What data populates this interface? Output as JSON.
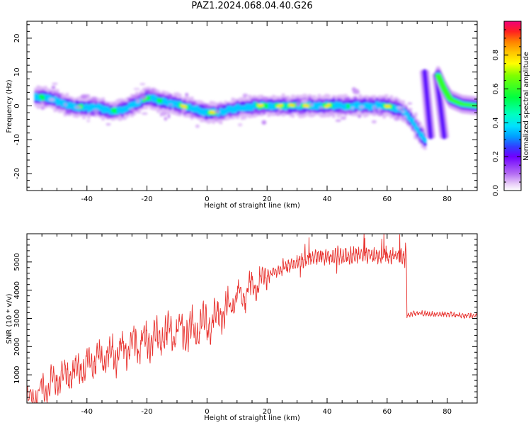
{
  "title": "PAZ1.2024.068.04.40.G26",
  "chart_data": [
    {
      "type": "heatmap",
      "xlabel": "Height of straight line (km)",
      "ylabel": "Frequency (Hz)",
      "xlim": [
        -60,
        90
      ],
      "ylim": [
        -25,
        25
      ],
      "xticks": [
        "-40",
        "-20",
        "0",
        "20",
        "40",
        "60",
        "80"
      ],
      "yticks": [
        "-20",
        "-10",
        "0",
        "10",
        "20"
      ],
      "colorbar": {
        "label": "Normalized spectral amplitude",
        "range": [
          0.0,
          1.0
        ],
        "ticks": [
          "0.0",
          "0.2",
          "0.4",
          "0.6",
          "0.8"
        ]
      },
      "ridge": {
        "x": [
          -57,
          -54,
          -50,
          -46,
          -43,
          -40,
          -36,
          -32,
          -28,
          -24,
          -20,
          -16,
          -12,
          -8,
          -4,
          0,
          4,
          8,
          12,
          16,
          20,
          30,
          40,
          50,
          60,
          64,
          66,
          68,
          70,
          72,
          73
        ],
        "y": [
          2.5,
          2.5,
          1.5,
          0,
          -0.5,
          -0.5,
          -0.5,
          -1.5,
          -1,
          0.5,
          2.5,
          1.5,
          0.8,
          0,
          -1,
          -2,
          -2,
          -1,
          -0.5,
          0,
          0,
          0,
          0,
          0,
          0,
          -1,
          -2,
          -4,
          -7,
          -9.5,
          -10.5
        ]
      },
      "secondary_segments": [
        {
          "x": [
            72.5,
            74.5
          ],
          "y": [
            10,
            -9
          ],
          "amplitude": 0.1
        },
        {
          "x": [
            76.5,
            79
          ],
          "y": [
            9,
            -9
          ],
          "amplitude": 0.1
        },
        {
          "x": [
            77,
            79,
            81,
            85,
            90
          ],
          "y": [
            9,
            5,
            2,
            0.5,
            0
          ],
          "amplitude": 0.5
        }
      ]
    },
    {
      "type": "line",
      "xlabel": "Height of straight line (km)",
      "ylabel": "SNR (10 * v/v)",
      "xlim": [
        -60,
        90
      ],
      "ylim": [
        0,
        6000
      ],
      "xticks": [
        "-40",
        "-20",
        "0",
        "20",
        "40",
        "60",
        "80"
      ],
      "yticks": [
        "1000",
        "2000",
        "3000",
        "4000",
        "5000"
      ],
      "color": "#e8322e",
      "envelope": {
        "x": [
          -60,
          -58,
          -55,
          -50,
          -45,
          -40,
          -35,
          -30,
          -25,
          -20,
          -15,
          -10,
          -5,
          0,
          5,
          10,
          15,
          20,
          25,
          30,
          35,
          40,
          45,
          50,
          55,
          60,
          65,
          66.4,
          66.6,
          70,
          75,
          80,
          85,
          90
        ],
        "y": [
          50,
          200,
          500,
          800,
          1100,
          1400,
          1600,
          1800,
          2000,
          2200,
          2400,
          2500,
          2600,
          2800,
          3200,
          3700,
          4100,
          4500,
          4800,
          5000,
          5150,
          5200,
          5200,
          5250,
          5250,
          5200,
          5200,
          5150,
          3100,
          3200,
          3150,
          3150,
          3100,
          3100
        ]
      }
    }
  ]
}
